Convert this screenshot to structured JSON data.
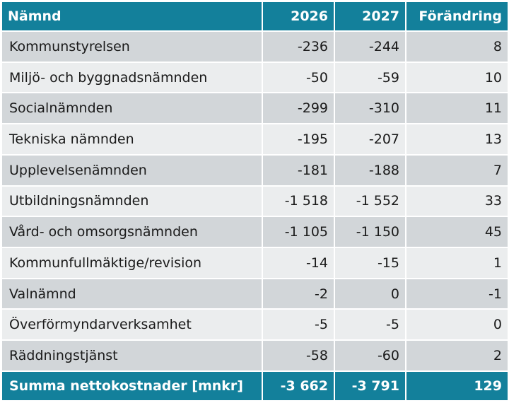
{
  "header": {
    "name": "Nämnd",
    "y1": "2026",
    "y2": "2027",
    "change": "Förändring"
  },
  "rows": [
    {
      "name": "Kommunstyrelsen",
      "y1": "-236",
      "y2": "-244",
      "change": "8"
    },
    {
      "name": "Miljö- och byggnadsnämnden",
      "y1": "-50",
      "y2": "-59",
      "change": "10"
    },
    {
      "name": "Socialnämnden",
      "y1": "-299",
      "y2": "-310",
      "change": "11"
    },
    {
      "name": "Tekniska nämnden",
      "y1": "-195",
      "y2": "-207",
      "change": "13"
    },
    {
      "name": "Upplevelsenämnden",
      "y1": "-181",
      "y2": "-188",
      "change": "7"
    },
    {
      "name": "Utbildningsnämnden",
      "y1": "-1 518",
      "y2": "-1 552",
      "change": "33"
    },
    {
      "name": "Vård- och omsorgsnämnden",
      "y1": "-1 105",
      "y2": "-1 150",
      "change": "45"
    },
    {
      "name": "Kommunfullmäktige/revision",
      "y1": "-14",
      "y2": "-15",
      "change": "1"
    },
    {
      "name": "Valnämnd",
      "y1": "-2",
      "y2": "0",
      "change": "-1"
    },
    {
      "name": "Överförmyndarverksamhet",
      "y1": "-5",
      "y2": "-5",
      "change": "0"
    },
    {
      "name": "Räddningstjänst",
      "y1": "-58",
      "y2": "-60",
      "change": "2"
    }
  ],
  "total": {
    "name": "Summa nettokostnader [mnkr]",
    "y1": "-3 662",
    "y2": "-3 791",
    "change": "129"
  },
  "colors": {
    "header_bg": "#13809b",
    "row_dark": "#d2d6d9",
    "row_light": "#ebedee"
  }
}
